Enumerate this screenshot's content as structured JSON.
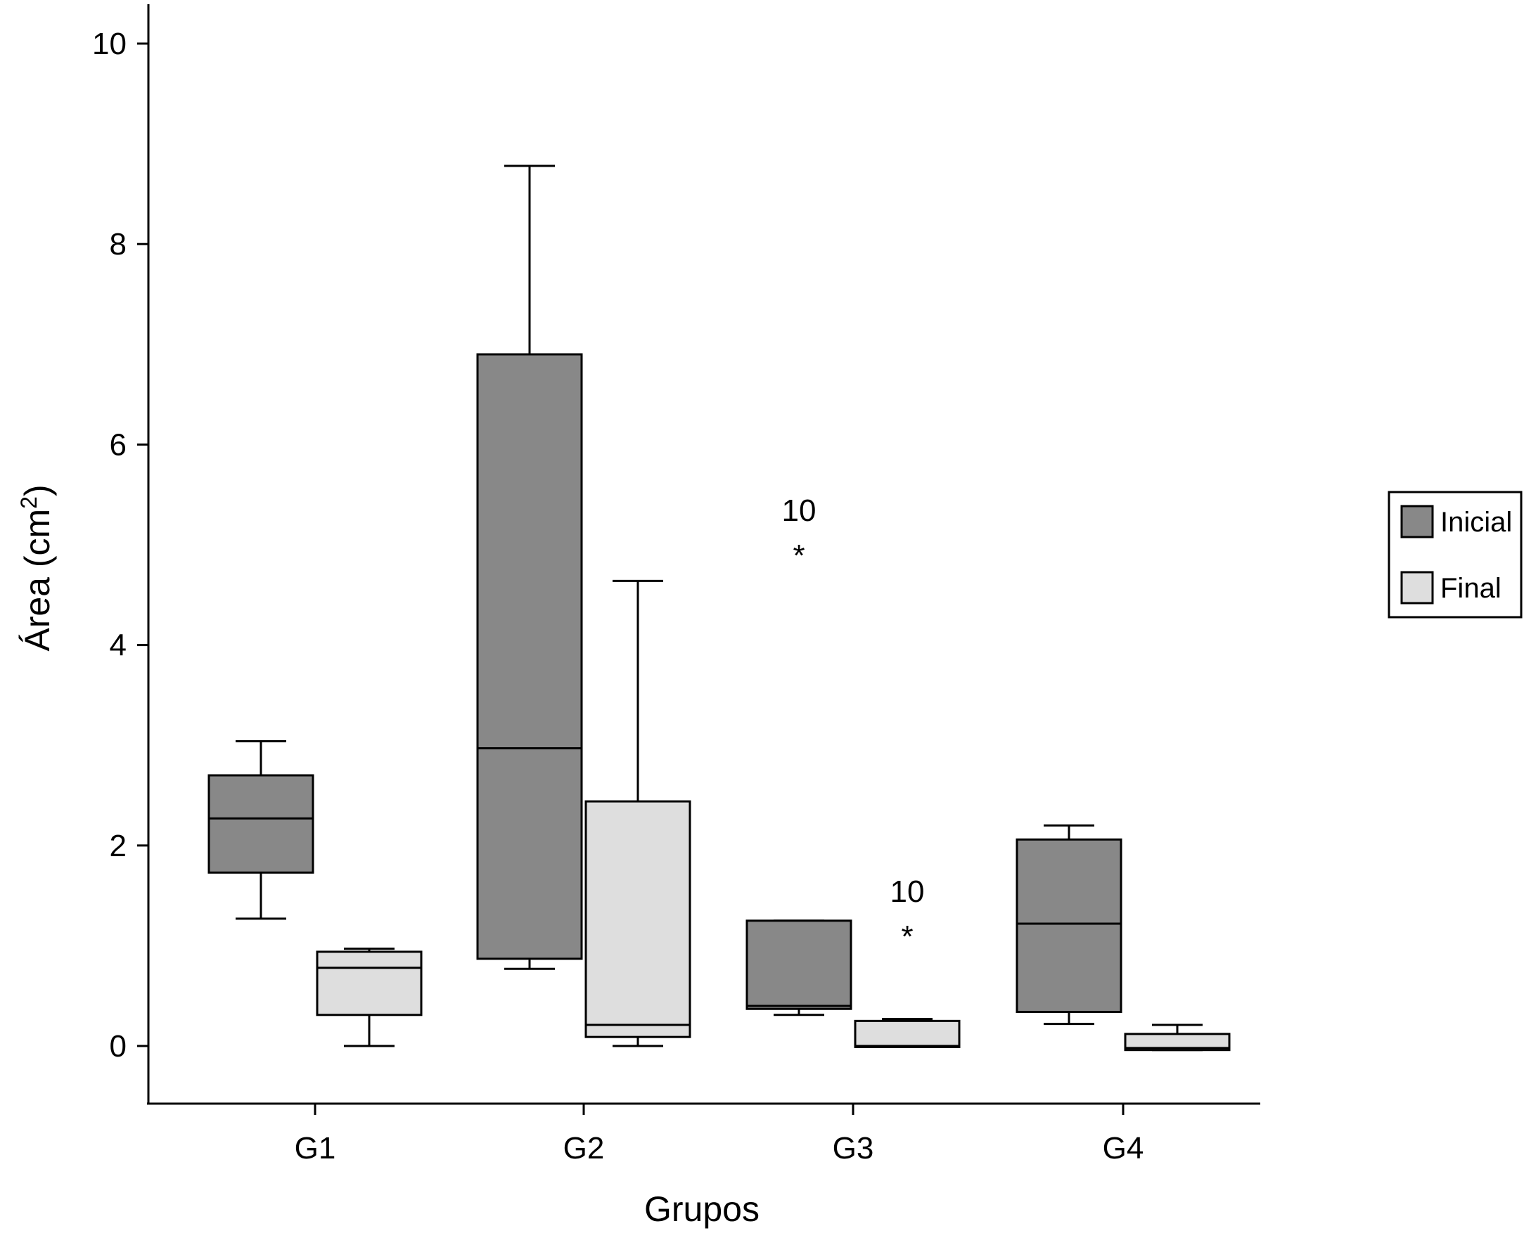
{
  "chart_data": {
    "type": "boxplot",
    "xlabel": "Grupos",
    "ylabel": "Área (cm",
    "ylabel_sup": "2",
    "ylabel_end": ")",
    "ylim": [
      -1.1,
      10.4
    ],
    "yticks": [
      0,
      2,
      4,
      6,
      8,
      10
    ],
    "categories": [
      "G1",
      "G2",
      "G3",
      "G4"
    ],
    "grid": false,
    "legend_position": "right",
    "series": [
      {
        "name": "Inicial",
        "color": "#888888",
        "boxes": [
          {
            "min": 1.27,
            "q1": 1.73,
            "median": 2.27,
            "q3": 2.7,
            "max": 3.04
          },
          {
            "min": 0.77,
            "q1": 0.87,
            "median": 2.97,
            "q3": 6.9,
            "max": 8.78
          },
          {
            "min": 0.31,
            "q1": 0.37,
            "median": 0.4,
            "q3": 1.25,
            "max": 1.25,
            "outliers": [
              {
                "value": 5.0,
                "label": "10"
              }
            ]
          },
          {
            "min": 0.22,
            "q1": 0.34,
            "median": 1.22,
            "q3": 2.06,
            "max": 2.2
          }
        ]
      },
      {
        "name": "Final",
        "color": "#dedede",
        "boxes": [
          {
            "min": 0.0,
            "q1": 0.31,
            "median": 0.78,
            "q3": 0.94,
            "max": 0.97
          },
          {
            "min": 0.0,
            "q1": 0.09,
            "median": 0.21,
            "q3": 2.44,
            "max": 4.64
          },
          {
            "min": -0.01,
            "q1": -0.01,
            "median": 0.0,
            "q3": 0.25,
            "max": 0.27,
            "outliers": [
              {
                "value": 1.2,
                "label": "10"
              }
            ]
          },
          {
            "min": -0.04,
            "q1": -0.04,
            "median": -0.02,
            "q3": 0.12,
            "max": 0.21
          }
        ]
      }
    ]
  }
}
